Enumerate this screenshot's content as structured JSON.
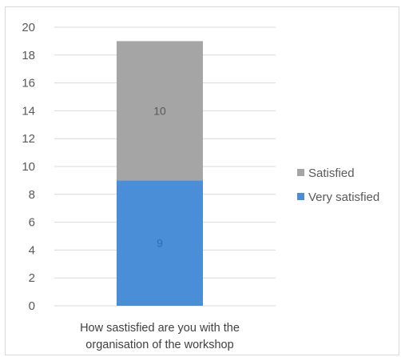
{
  "chart_data": {
    "type": "bar",
    "stacked": true,
    "categories": [
      "How sastisfied are you with the organisation of the workshop"
    ],
    "category_label_lines": [
      "How sastisfied are you with the",
      "organisation of the workshop"
    ],
    "series": [
      {
        "name": "Very satisfied",
        "values": [
          9
        ],
        "color": "#4a8ed8",
        "label_color": "#2e6db5"
      },
      {
        "name": "Satisfied",
        "values": [
          10
        ],
        "color": "#a5a5a5",
        "label_color": "#595959"
      }
    ],
    "ylim": [
      0,
      20
    ],
    "yticks": [
      "0",
      "2",
      "4",
      "6",
      "8",
      "10",
      "12",
      "14",
      "16",
      "18",
      "20"
    ],
    "grid": true,
    "legend_position": "right",
    "legend_order": [
      "Satisfied",
      "Very satisfied"
    ],
    "colors": {
      "gridline": "#d9d9d9",
      "frame": "#d9d9d9"
    }
  }
}
